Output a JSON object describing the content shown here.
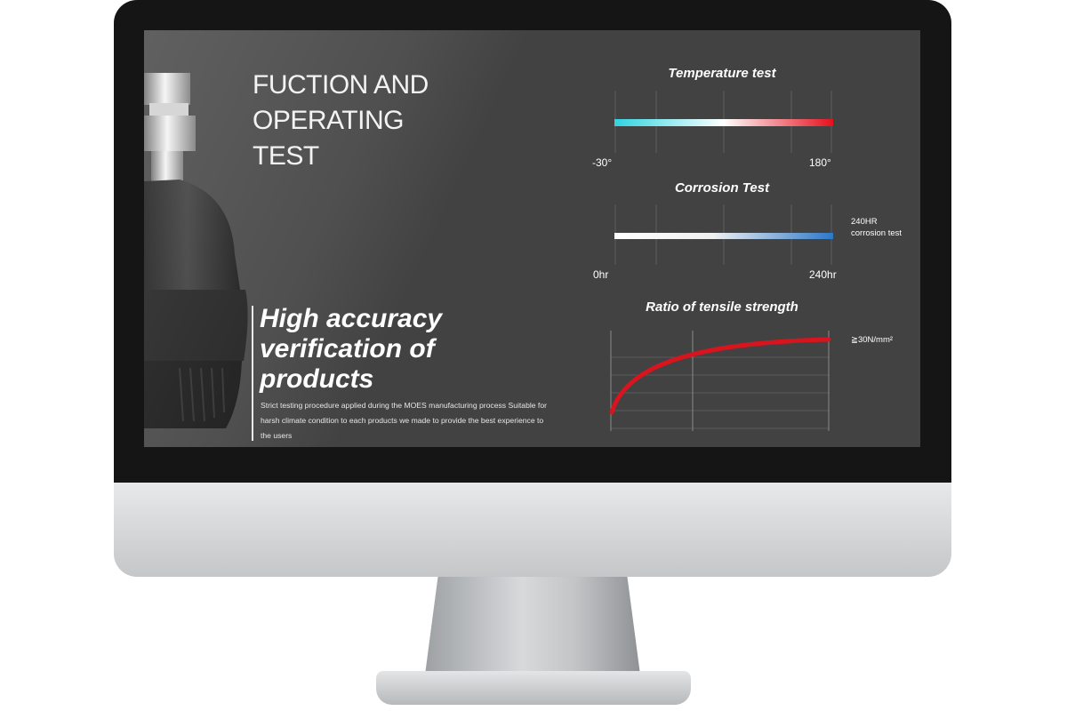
{
  "slide": {
    "title_lines": [
      "FUCTION AND",
      "OPERATING",
      "TEST"
    ],
    "headline_lines": [
      "High accuracy",
      "verification of",
      "products"
    ],
    "body": "Strict testing procedure applied during the MOES manufacturing process Suitable for harsh climate condition to each products we made to provide the best experience to the users"
  },
  "colors": {
    "screen_bg": "#424242",
    "cold": "#2fd3e0",
    "hot": "#e5101e",
    "corrosion": "#2e78c8",
    "curve": "#d8141e"
  },
  "chart_data": [
    {
      "type": "bar",
      "title": "Temperature test",
      "min_label": "-30°",
      "max_label": "180°",
      "range": [
        -30,
        180
      ],
      "gradient": [
        "#2fd3e0",
        "#ffffff",
        "#e5101e"
      ],
      "grid": true
    },
    {
      "type": "bar",
      "title": "Corrosion Test",
      "min_label": "0hr",
      "max_label": "240hr",
      "range": [
        0,
        240
      ],
      "gradient": [
        "#ffffff",
        "#2e78c8"
      ],
      "annotation": [
        "240HR",
        "corrosion test"
      ],
      "grid": true
    },
    {
      "type": "line",
      "title": "Ratio of tensile strength",
      "annotation": "≧30N/mm²",
      "curve": "rising",
      "grid": true
    }
  ]
}
